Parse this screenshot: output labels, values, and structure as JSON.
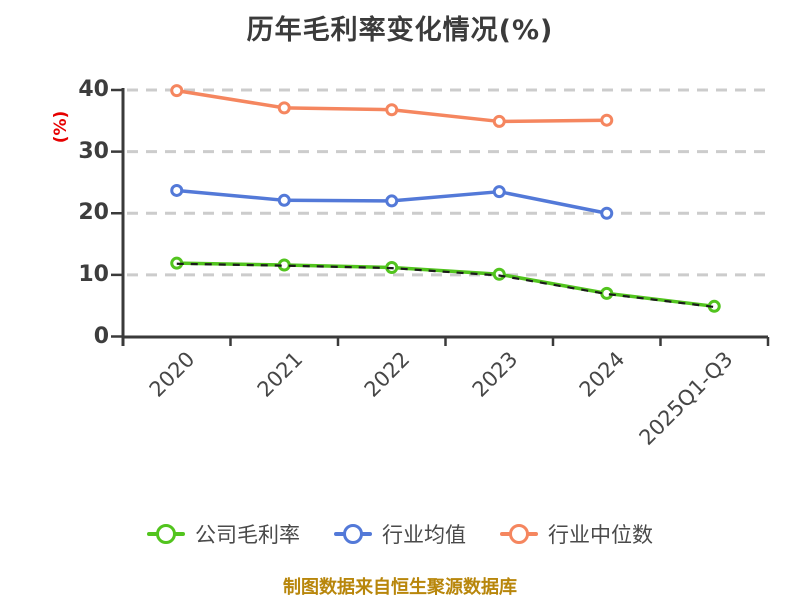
{
  "header": {
    "title": "历年毛利率变化情况(%)",
    "title_color": "#3b3b3b"
  },
  "footer": {
    "source_note": "制图数据来自恒生聚源数据库",
    "color": "#b8860b"
  },
  "chart_data": {
    "type": "line",
    "title": "历年毛利率变化情况(%)",
    "xlabel": "",
    "ylabel": "(%)",
    "ylabel_color": "#e60000",
    "categories": [
      "2020",
      "2021",
      "2022",
      "2023",
      "2024",
      "2025Q1-Q3"
    ],
    "series": [
      {
        "name": "公司毛利率",
        "color": "#52c41e",
        "values": [
          11.9,
          11.6,
          11.2,
          10.1,
          7.0,
          4.9
        ]
      },
      {
        "name": "行业均值",
        "color": "#5379d8",
        "values": [
          23.7,
          22.1,
          22.0,
          23.5,
          20.0,
          null
        ]
      },
      {
        "name": "行业中位数",
        "color": "#f5865f",
        "values": [
          39.9,
          37.1,
          36.8,
          34.9,
          35.1,
          null
        ]
      }
    ],
    "overlay_series": {
      "name": "company-margin-dashed-overlay",
      "color": "#1b1b1b",
      "dash": "7 7",
      "values": [
        11.8,
        11.5,
        11.1,
        9.9,
        6.9,
        4.8
      ]
    },
    "ylim": [
      0,
      40
    ],
    "yticks": [
      0,
      10,
      20,
      30,
      40
    ],
    "grid": {
      "show": true,
      "style": "dashed",
      "color": "#cccccc",
      "at": [
        10,
        20,
        30,
        40
      ]
    },
    "axis_color": "#3a3a3a",
    "tick_label_color": "#3d3d3d",
    "marker": {
      "fill": "#ffffff",
      "radius": 5
    },
    "legend_position": "bottom",
    "x_label_rotation": -45
  }
}
